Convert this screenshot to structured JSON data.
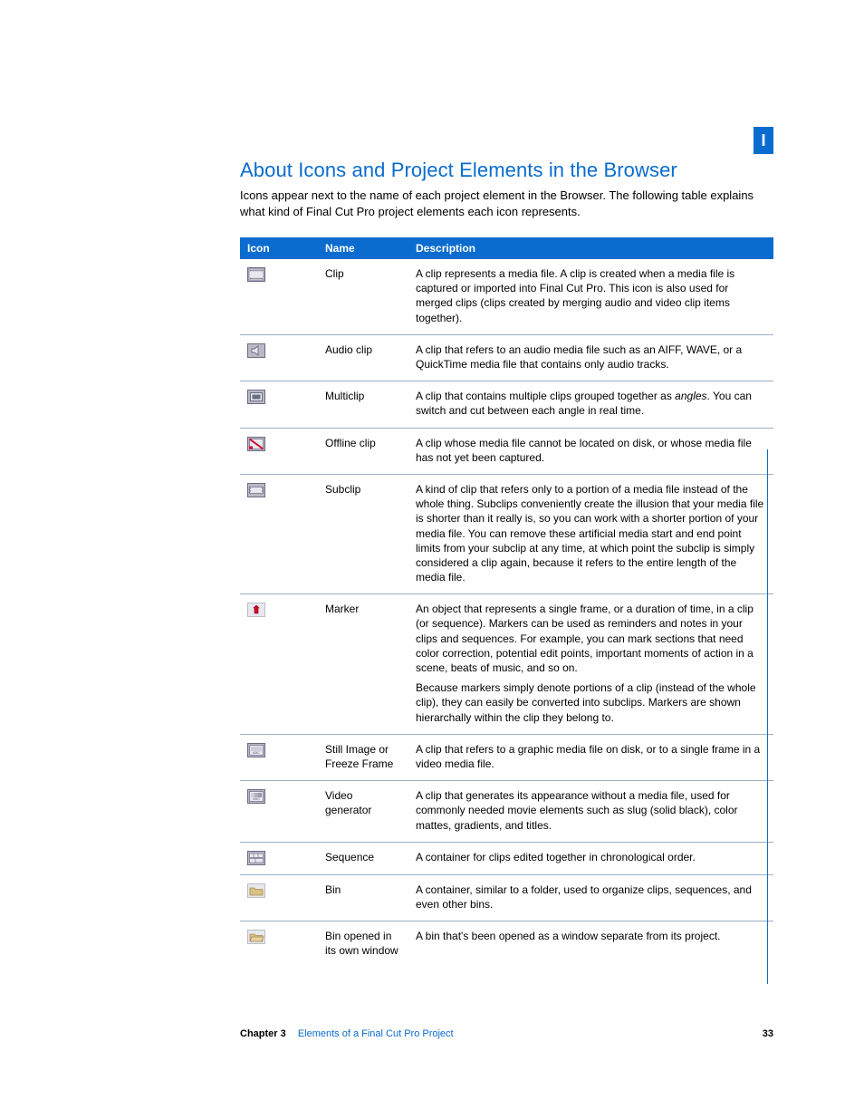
{
  "tab_label": "I",
  "heading": "About Icons and Project Elements in the Browser",
  "intro": "Icons appear next to the name of each project element in the Browser. The following table explains what kind of Final Cut Pro project elements each icon represents.",
  "columns": {
    "icon": "Icon",
    "name": "Name",
    "desc": "Description"
  },
  "rows": [
    {
      "icon": "clip-icon",
      "name": "Clip",
      "desc": [
        "A clip represents a media file. A clip is created when a media file is captured or imported into Final Cut Pro. This icon is also used for merged clips (clips created by merging audio and video clip items together)."
      ]
    },
    {
      "icon": "audio-clip-icon",
      "name": "Audio clip",
      "desc": [
        "A clip that refers to an audio media file such as an AIFF, WAVE, or a QuickTime media file that contains only audio tracks."
      ]
    },
    {
      "icon": "multiclip-icon",
      "name": "Multiclip",
      "desc_html": "A clip that contains multiple clips grouped together as <em>angles</em>. You can switch and cut between each angle in real time."
    },
    {
      "icon": "offline-clip-icon",
      "name": "Offline clip",
      "desc": [
        "A clip whose media file cannot be located on disk, or whose media file has not yet been captured."
      ]
    },
    {
      "icon": "subclip-icon",
      "name": "Subclip",
      "desc": [
        "A kind of clip that refers only to a portion of a media file instead of the whole thing. Subclips conveniently create the illusion that your media file is shorter than it really is, so you can work with a shorter portion of your media file. You can remove these artificial media start and end point limits from your subclip at any time, at which point the subclip is simply considered a clip again, because it refers to the entire length of the media file."
      ]
    },
    {
      "icon": "marker-icon",
      "name": "Marker",
      "desc": [
        "An object that represents a single frame, or a duration of time, in a clip (or sequence). Markers can be used as reminders and notes in your clips and sequences. For example, you can mark sections that need color correction, potential edit points, important moments of action in a scene, beats of music, and so on.",
        "Because markers simply denote portions of a clip (instead of the whole clip), they can easily be converted into subclips. Markers are shown hierarchally within the clip they belong to."
      ]
    },
    {
      "icon": "still-image-icon",
      "name": "Still Image or Freeze Frame",
      "desc": [
        "A clip that refers to a graphic media file on disk, or to a single frame in a video media file."
      ]
    },
    {
      "icon": "video-generator-icon",
      "name": "Video generator",
      "desc": [
        "A clip that generates its appearance without a media file, used for commonly needed movie elements such as slug (solid black), color mattes, gradients, and titles."
      ]
    },
    {
      "icon": "sequence-icon",
      "name": "Sequence",
      "desc": [
        "A container for clips edited together in chronological order."
      ]
    },
    {
      "icon": "bin-icon",
      "name": "Bin",
      "desc": [
        "A container, similar to a folder, used to organize clips, sequences, and even other bins."
      ]
    },
    {
      "icon": "bin-open-icon",
      "name": "Bin opened in its own window",
      "desc": [
        "A bin that's been opened as a window separate from its project."
      ]
    }
  ],
  "footer": {
    "chapter_label": "Chapter 3",
    "chapter_title": "Elements of a Final Cut Pro Project",
    "page_number": "33"
  },
  "colors": {
    "accent": "#0a6cce",
    "rule": "#9bb0c7",
    "icon_frame": "#6b6b82",
    "icon_fill": "#b9b9c6",
    "icon_inner": "#e8e8ef",
    "offline_red": "#d4002a",
    "marker_red": "#d4002a",
    "folder_tan": "#d9c085",
    "folder_edge": "#a88b4a"
  }
}
